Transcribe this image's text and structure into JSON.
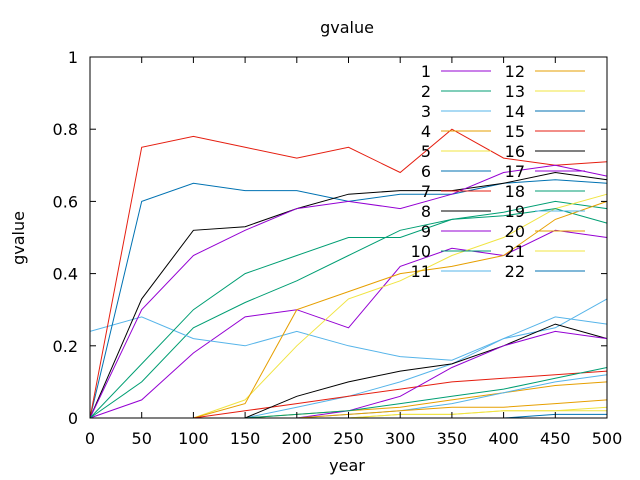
{
  "chart_data": {
    "type": "line",
    "title": "gvalue",
    "xlabel": "year",
    "ylabel": "gvalue",
    "xlim": [
      0,
      500
    ],
    "ylim": [
      0,
      1
    ],
    "xticks": [
      0,
      50,
      100,
      150,
      200,
      250,
      300,
      350,
      400,
      450,
      500
    ],
    "yticks": [
      0,
      0.2,
      0.4,
      0.6,
      0.8,
      1
    ],
    "ytick_labels": [
      "0",
      "0.2",
      "0.4",
      "0.6",
      "0.8",
      "1"
    ],
    "grid": false,
    "legend_position": "top-right",
    "series": [
      {
        "name": "1",
        "color": "#9400d3",
        "x": [
          0,
          50,
          100,
          150,
          200,
          250,
          300,
          350,
          400,
          450,
          500
        ],
        "y": [
          0.0,
          0.05,
          0.18,
          0.28,
          0.3,
          0.25,
          0.42,
          0.47,
          0.45,
          0.52,
          0.5
        ]
      },
      {
        "name": "2",
        "color": "#009e73",
        "x": [
          0,
          50,
          100,
          150,
          200,
          250,
          300,
          350,
          400,
          450,
          500
        ],
        "y": [
          0.0,
          0.1,
          0.25,
          0.32,
          0.38,
          0.45,
          0.52,
          0.55,
          0.57,
          0.6,
          0.58
        ]
      },
      {
        "name": "3",
        "color": "#56b4e9",
        "x": [
          0,
          50,
          100,
          150,
          200,
          250,
          300,
          350,
          400,
          450,
          500
        ],
        "y": [
          0.24,
          0.28,
          0.22,
          0.2,
          0.24,
          0.2,
          0.17,
          0.16,
          0.22,
          0.28,
          0.26
        ]
      },
      {
        "name": "4",
        "color": "#e69f00",
        "x": [
          0,
          50,
          100,
          150,
          200,
          250,
          300,
          350,
          400,
          450,
          500
        ],
        "y": [
          0.0,
          0.0,
          0.0,
          0.0,
          0.01,
          0.02,
          0.03,
          0.05,
          0.07,
          0.09,
          0.1
        ]
      },
      {
        "name": "5",
        "color": "#f0e442",
        "x": [
          0,
          50,
          100,
          150,
          200,
          250,
          300,
          350,
          400,
          450,
          500
        ],
        "y": [
          0.0,
          0.0,
          0.0,
          0.05,
          0.2,
          0.33,
          0.38,
          0.45,
          0.5,
          0.58,
          0.62
        ]
      },
      {
        "name": "6",
        "color": "#0072b2",
        "x": [
          0,
          50,
          100,
          150,
          200,
          250,
          300,
          350,
          400,
          450,
          500
        ],
        "y": [
          0.0,
          0.6,
          0.65,
          0.63,
          0.63,
          0.6,
          0.62,
          0.62,
          0.65,
          0.66,
          0.65
        ]
      },
      {
        "name": "7",
        "color": "#e51e10",
        "x": [
          0,
          50,
          100,
          150,
          200,
          250,
          300,
          350,
          400,
          450,
          500
        ],
        "y": [
          0.0,
          0.75,
          0.78,
          0.75,
          0.72,
          0.75,
          0.68,
          0.8,
          0.72,
          0.7,
          0.71
        ]
      },
      {
        "name": "8",
        "color": "#000000",
        "x": [
          0,
          50,
          100,
          150,
          200,
          250,
          300,
          350,
          400,
          450,
          500
        ],
        "y": [
          0.0,
          0.33,
          0.52,
          0.53,
          0.58,
          0.62,
          0.63,
          0.63,
          0.65,
          0.68,
          0.66
        ]
      },
      {
        "name": "9",
        "color": "#9400d3",
        "x": [
          0,
          50,
          100,
          150,
          200,
          250,
          300,
          350,
          400,
          450,
          500
        ],
        "y": [
          0.0,
          0.3,
          0.45,
          0.52,
          0.58,
          0.6,
          0.58,
          0.62,
          0.68,
          0.7,
          0.67
        ]
      },
      {
        "name": "10",
        "color": "#009e73",
        "x": [
          0,
          50,
          100,
          150,
          200,
          250,
          300,
          350,
          400,
          450,
          500
        ],
        "y": [
          0.0,
          0.15,
          0.3,
          0.4,
          0.45,
          0.5,
          0.5,
          0.55,
          0.56,
          0.58,
          0.54
        ]
      },
      {
        "name": "11",
        "color": "#56b4e9",
        "x": [
          0,
          50,
          100,
          150,
          200,
          250,
          300,
          350,
          400,
          450,
          500
        ],
        "y": [
          0.0,
          0.0,
          0.0,
          0.0,
          0.03,
          0.06,
          0.1,
          0.15,
          0.22,
          0.25,
          0.33
        ]
      },
      {
        "name": "12",
        "color": "#e69f00",
        "x": [
          0,
          50,
          100,
          150,
          200,
          250,
          300,
          350,
          400,
          450,
          500
        ],
        "y": [
          0.0,
          0.0,
          0.0,
          0.04,
          0.3,
          0.35,
          0.4,
          0.42,
          0.45,
          0.55,
          0.6
        ]
      },
      {
        "name": "13",
        "color": "#f0e442",
        "x": [
          0,
          50,
          100,
          150,
          200,
          250,
          300,
          350,
          400,
          450,
          500
        ],
        "y": [
          0.0,
          0.0,
          0.0,
          0.0,
          0.0,
          0.0,
          0.01,
          0.01,
          0.02,
          0.02,
          0.03
        ]
      },
      {
        "name": "14",
        "color": "#0072b2",
        "x": [
          0,
          50,
          100,
          150,
          200,
          250,
          300,
          350,
          400,
          450,
          500
        ],
        "y": [
          0.0,
          0.0,
          0.0,
          0.0,
          0.0,
          0.0,
          0.0,
          0.0,
          0.0,
          0.0,
          0.0
        ]
      },
      {
        "name": "15",
        "color": "#e51e10",
        "x": [
          0,
          50,
          100,
          150,
          200,
          250,
          300,
          350,
          400,
          450,
          500
        ],
        "y": [
          0.0,
          0.0,
          0.0,
          0.02,
          0.04,
          0.06,
          0.08,
          0.1,
          0.11,
          0.12,
          0.13
        ]
      },
      {
        "name": "16",
        "color": "#000000",
        "x": [
          0,
          50,
          100,
          150,
          200,
          250,
          300,
          350,
          400,
          450,
          500
        ],
        "y": [
          0.0,
          0.0,
          0.0,
          0.0,
          0.06,
          0.1,
          0.13,
          0.15,
          0.2,
          0.26,
          0.22
        ]
      },
      {
        "name": "17",
        "color": "#9400d3",
        "x": [
          0,
          50,
          100,
          150,
          200,
          250,
          300,
          350,
          400,
          450,
          500
        ],
        "y": [
          0.0,
          0.0,
          0.0,
          0.0,
          0.0,
          0.02,
          0.06,
          0.14,
          0.2,
          0.24,
          0.22
        ]
      },
      {
        "name": "18",
        "color": "#009e73",
        "x": [
          0,
          50,
          100,
          150,
          200,
          250,
          300,
          350,
          400,
          450,
          500
        ],
        "y": [
          0.0,
          0.0,
          0.0,
          0.0,
          0.01,
          0.02,
          0.04,
          0.06,
          0.08,
          0.11,
          0.14
        ]
      },
      {
        "name": "19",
        "color": "#56b4e9",
        "x": [
          0,
          50,
          100,
          150,
          200,
          250,
          300,
          350,
          400,
          450,
          500
        ],
        "y": [
          0.0,
          0.0,
          0.0,
          0.0,
          0.0,
          0.01,
          0.02,
          0.04,
          0.07,
          0.1,
          0.12
        ]
      },
      {
        "name": "20",
        "color": "#e69f00",
        "x": [
          0,
          50,
          100,
          150,
          200,
          250,
          300,
          350,
          400,
          450,
          500
        ],
        "y": [
          0.0,
          0.0,
          0.0,
          0.0,
          0.0,
          0.01,
          0.02,
          0.03,
          0.03,
          0.04,
          0.05
        ]
      },
      {
        "name": "21",
        "color": "#f0e442",
        "x": [
          0,
          50,
          100,
          150,
          200,
          250,
          300,
          350,
          400,
          450,
          500
        ],
        "y": [
          0.0,
          0.0,
          0.0,
          0.0,
          0.0,
          0.0,
          0.01,
          0.01,
          0.02,
          0.02,
          0.02
        ]
      },
      {
        "name": "22",
        "color": "#0072b2",
        "x": [
          0,
          50,
          100,
          150,
          200,
          250,
          300,
          350,
          400,
          450,
          500
        ],
        "y": [
          0.0,
          0.0,
          0.0,
          0.0,
          0.0,
          0.0,
          0.0,
          0.0,
          0.0,
          0.01,
          0.01
        ]
      }
    ]
  }
}
